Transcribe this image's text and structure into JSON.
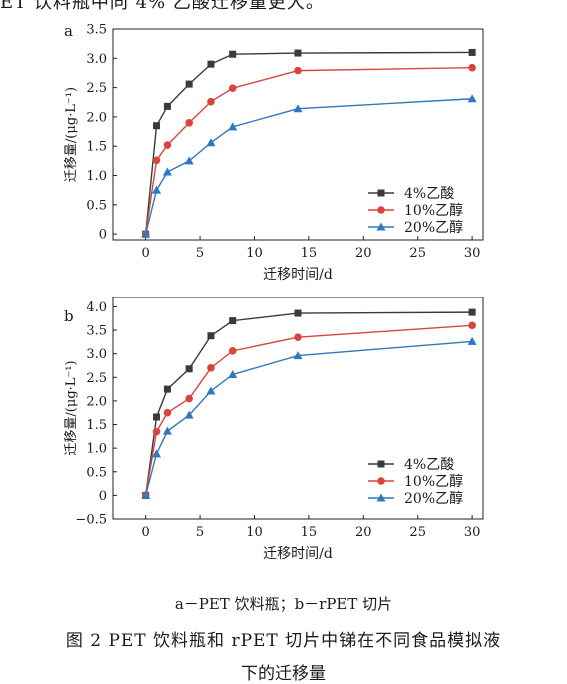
{
  "top_text": "ET 饮料瓶中同 4% 乙酸迁移量更大。",
  "caption_sub": "a－PET 饮料瓶；b－rPET 切片",
  "caption_main": "图 2   PET 饮料瓶和 rPET 切片中锑在不同食品模拟液",
  "caption_cont": "下的迁移量",
  "colors": {
    "acid": "#3a3a3a",
    "ethanol10": "#d9453d",
    "ethanol20": "#2f78bd"
  },
  "chart_data": [
    {
      "panel": "a",
      "type": "line",
      "xlabel": "迁移时间/d",
      "ylabel": "迁移量/(μg·L⁻¹)",
      "xlim": [
        -3,
        31
      ],
      "ylim": [
        -0.1,
        3.5
      ],
      "xticks": [
        0,
        5,
        10,
        15,
        20,
        25,
        30
      ],
      "yticks": [
        0,
        0.5,
        1.0,
        1.5,
        2.0,
        2.5,
        3.0,
        3.5
      ],
      "ytick_labels": [
        "0",
        "0.5",
        "1.0",
        "1.5",
        "2.0",
        "2.5",
        "3.0",
        "3.5"
      ],
      "legend": "bottom-right",
      "x": [
        0,
        1,
        2,
        4,
        6,
        8,
        14,
        30
      ],
      "series": [
        {
          "name": "4%乙酸",
          "marker": "square",
          "values": [
            0,
            1.85,
            2.18,
            2.56,
            2.9,
            3.07,
            3.09,
            3.1
          ]
        },
        {
          "name": "10%乙醇",
          "marker": "circle",
          "values": [
            0,
            1.26,
            1.52,
            1.9,
            2.26,
            2.49,
            2.79,
            2.84
          ]
        },
        {
          "name": "20%乙醇",
          "marker": "triangle",
          "values": [
            0,
            0.75,
            1.06,
            1.25,
            1.56,
            1.83,
            2.14,
            2.31
          ]
        }
      ]
    },
    {
      "panel": "b",
      "type": "line",
      "xlabel": "迁移时间/d",
      "ylabel": "迁移量/(μg·L⁻¹)",
      "xlim": [
        -3,
        31
      ],
      "ylim": [
        -0.5,
        4.2
      ],
      "xticks": [
        0,
        5,
        10,
        15,
        20,
        25,
        30
      ],
      "yticks": [
        -0.5,
        0,
        0.5,
        1.0,
        1.5,
        2.0,
        2.5,
        3.0,
        3.5,
        4.0
      ],
      "ytick_labels": [
        "−0.5",
        "0",
        "0.5",
        "1.0",
        "1.5",
        "2.0",
        "2.5",
        "3.0",
        "3.5",
        "4.0"
      ],
      "legend": "bottom-right",
      "x": [
        0,
        1,
        2,
        4,
        6,
        8,
        14,
        30
      ],
      "series": [
        {
          "name": "4%乙酸",
          "marker": "square",
          "values": [
            0,
            1.66,
            2.25,
            2.68,
            3.38,
            3.7,
            3.86,
            3.88
          ]
        },
        {
          "name": "10%乙醇",
          "marker": "circle",
          "values": [
            0,
            1.35,
            1.75,
            2.05,
            2.7,
            3.06,
            3.35,
            3.6
          ]
        },
        {
          "name": "20%乙醇",
          "marker": "triangle",
          "values": [
            0,
            0.88,
            1.36,
            1.7,
            2.21,
            2.56,
            2.96,
            3.26
          ]
        }
      ]
    }
  ]
}
